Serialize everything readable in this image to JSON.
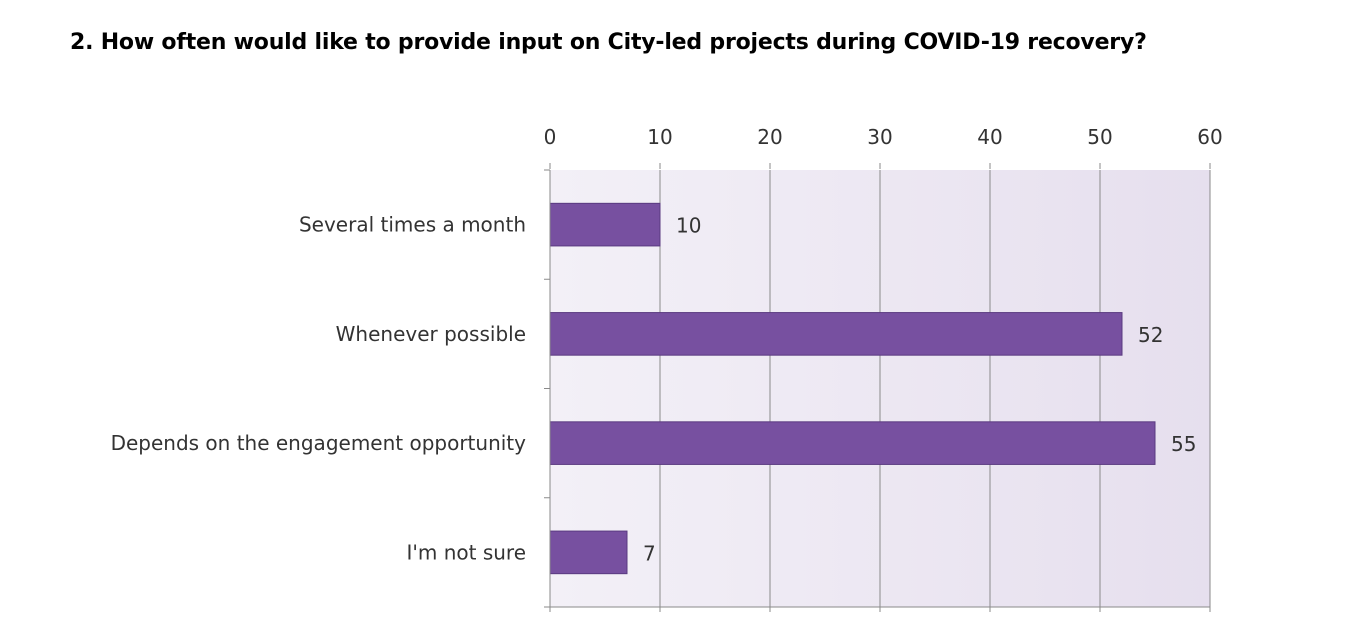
{
  "chart_data": {
    "type": "bar",
    "orientation": "horizontal",
    "title": "2. How often would like to provide input on City-led projects during COVID-19 recovery?",
    "categories": [
      "Several times a month",
      "Whenever possible",
      "Depends on the engagement opportunity",
      "I'm not sure"
    ],
    "values": [
      10,
      52,
      55,
      7
    ],
    "xlim": [
      0,
      60
    ],
    "xticks": [
      0,
      10,
      20,
      30,
      40,
      50,
      60
    ],
    "axis_position": "top",
    "grid": true,
    "data_labels": true,
    "bar_color": "#7750A0",
    "plot_background": "#ECE6F2"
  }
}
